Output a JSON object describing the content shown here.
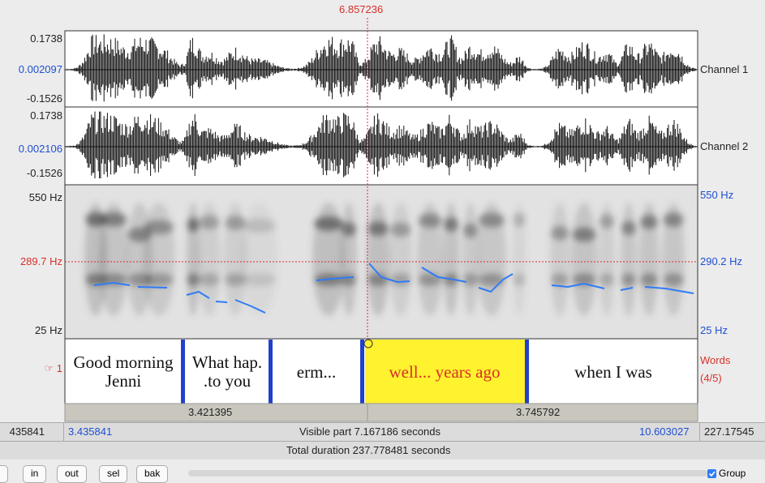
{
  "cursor_time": "6.857236",
  "channels": [
    {
      "name": "Channel 1",
      "max": "0.1738",
      "mid": "0.002097",
      "min": "-0.1526"
    },
    {
      "name": "Channel 2",
      "max": "0.1738",
      "mid": "0.002106",
      "min": "-0.1526"
    }
  ],
  "spectrogram": {
    "left": {
      "top": "550 Hz",
      "cursor": "289.7 Hz",
      "bottom": "25 Hz"
    },
    "right": {
      "top": "550 Hz",
      "cursor": "290.2 Hz",
      "bottom": "25 Hz"
    }
  },
  "tier": {
    "number": "☞ 1",
    "name": "Words",
    "position": "(4/5)",
    "intervals": [
      "Good morning\nJenni",
      "What hap.\n.to you",
      "erm...",
      "well... years ago",
      "when I was"
    ]
  },
  "selection_durations": [
    "3.421395",
    "3.745792"
  ],
  "window_start_partial": "435841",
  "visible_start": "3.435841",
  "visible_part": "Visible part 7.167186 seconds",
  "visible_end": "10.603027",
  "window_end_partial": "227.17545",
  "total_duration": "Total duration 237.778481 seconds",
  "buttons": [
    "in",
    "out",
    "sel",
    "bak"
  ],
  "group": "Group"
}
